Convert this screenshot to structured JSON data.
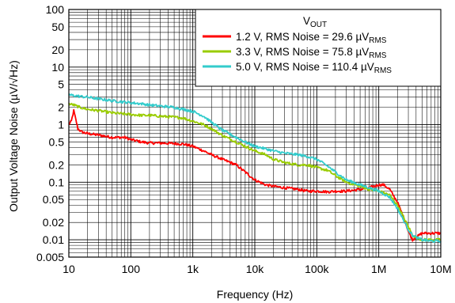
{
  "chart_data": {
    "type": "line",
    "title": "",
    "xlabel": "Frequency (Hz)",
    "ylabel": "Output Voltage Noise (µV/√Hz)",
    "xscale": "log",
    "yscale": "log",
    "xlim": [
      10,
      10000000
    ],
    "ylim": [
      0.005,
      100
    ],
    "grid": true,
    "xticks": [
      {
        "v": 10,
        "label": "10"
      },
      {
        "v": 100,
        "label": "100"
      },
      {
        "v": 1000,
        "label": "1k"
      },
      {
        "v": 10000,
        "label": "10k"
      },
      {
        "v": 100000,
        "label": "100k"
      },
      {
        "v": 1000000,
        "label": "1M"
      },
      {
        "v": 10000000,
        "label": "10M"
      }
    ],
    "yticks": [
      {
        "v": 100,
        "label": "100"
      },
      {
        "v": 50,
        "label": "50"
      },
      {
        "v": 20,
        "label": "20"
      },
      {
        "v": 10,
        "label": "10"
      },
      {
        "v": 5,
        "label": "5"
      },
      {
        "v": 2,
        "label": "2"
      },
      {
        "v": 1,
        "label": "1"
      },
      {
        "v": 0.5,
        "label": "0.5"
      },
      {
        "v": 0.2,
        "label": "0.2"
      },
      {
        "v": 0.1,
        "label": "0.1"
      },
      {
        "v": 0.05,
        "label": "0.05"
      },
      {
        "v": 0.02,
        "label": "0.02"
      },
      {
        "v": 0.01,
        "label": "0.01"
      },
      {
        "v": 0.005,
        "label": "0.005"
      }
    ],
    "legend": {
      "placement": "top-right",
      "title_main": "V",
      "title_sub": "OUT"
    },
    "series": [
      {
        "name": "1.2 V, RMS Noise = 29.6 µV",
        "name_sub": "RMS",
        "color": "#ff0000",
        "x": [
          10,
          11,
          12,
          13,
          14,
          16,
          20,
          30,
          50,
          80,
          100,
          150,
          200,
          300,
          500,
          700,
          1000,
          1500,
          2000,
          3000,
          5000,
          7000,
          10000,
          15000,
          20000,
          30000,
          50000,
          70000,
          100000,
          150000,
          200000,
          300000,
          500000,
          700000,
          1000000,
          1200000,
          1500000,
          2000000,
          2500000,
          3000000,
          3500000,
          4000000,
          5000000,
          7000000,
          10000000
        ],
        "values": [
          1.0,
          1.15,
          1.75,
          1.2,
          0.85,
          0.75,
          0.7,
          0.66,
          0.6,
          0.6,
          0.55,
          0.5,
          0.48,
          0.48,
          0.47,
          0.46,
          0.42,
          0.35,
          0.3,
          0.25,
          0.2,
          0.15,
          0.11,
          0.09,
          0.085,
          0.08,
          0.075,
          0.07,
          0.07,
          0.068,
          0.07,
          0.07,
          0.075,
          0.08,
          0.09,
          0.09,
          0.075,
          0.045,
          0.025,
          0.014,
          0.01,
          0.011,
          0.013,
          0.013,
          0.013
        ]
      },
      {
        "name": "3.3 V, RMS Noise = 75.8 µV",
        "name_sub": "RMS",
        "color": "#99cc00",
        "x": [
          10,
          12,
          15,
          20,
          30,
          50,
          70,
          100,
          150,
          200,
          300,
          500,
          700,
          1000,
          1500,
          2000,
          3000,
          5000,
          7000,
          10000,
          15000,
          20000,
          30000,
          50000,
          70000,
          100000,
          150000,
          200000,
          300000,
          500000,
          700000,
          1000000,
          1500000,
          2000000,
          2500000,
          3000000,
          3500000,
          4000000,
          5000000,
          7000000,
          10000000
        ],
        "values": [
          2.3,
          2.2,
          2.0,
          1.85,
          1.75,
          1.6,
          1.55,
          1.5,
          1.45,
          1.45,
          1.4,
          1.35,
          1.3,
          1.15,
          1.0,
          0.85,
          0.65,
          0.5,
          0.42,
          0.35,
          0.3,
          0.25,
          0.22,
          0.2,
          0.2,
          0.18,
          0.16,
          0.13,
          0.1,
          0.085,
          0.075,
          0.07,
          0.06,
          0.04,
          0.025,
          0.017,
          0.012,
          0.011,
          0.01,
          0.01,
          0.01
        ]
      },
      {
        "name": "5.0 V, RMS Noise = 110.4 µV",
        "name_sub": "RMS",
        "color": "#33cccc",
        "x": [
          10,
          12,
          15,
          20,
          30,
          50,
          70,
          100,
          150,
          200,
          300,
          500,
          700,
          1000,
          1500,
          2000,
          3000,
          5000,
          7000,
          10000,
          15000,
          20000,
          30000,
          50000,
          70000,
          100000,
          150000,
          200000,
          300000,
          500000,
          700000,
          1000000,
          1500000,
          2000000,
          2500000,
          3000000,
          3500000,
          4000000,
          5000000,
          7000000,
          10000000
        ],
        "values": [
          3.3,
          3.2,
          3.1,
          3.0,
          2.8,
          2.6,
          2.5,
          2.4,
          2.3,
          2.2,
          2.1,
          2.0,
          1.85,
          1.7,
          1.4,
          1.1,
          0.8,
          0.6,
          0.5,
          0.42,
          0.38,
          0.35,
          0.32,
          0.3,
          0.28,
          0.25,
          0.19,
          0.15,
          0.11,
          0.09,
          0.08,
          0.07,
          0.055,
          0.035,
          0.022,
          0.015,
          0.012,
          0.011,
          0.01,
          0.0095,
          0.0095
        ]
      }
    ]
  }
}
